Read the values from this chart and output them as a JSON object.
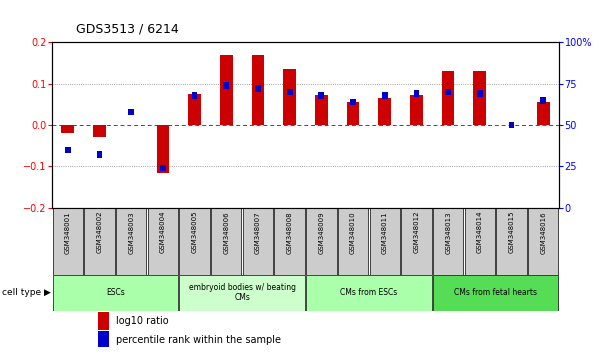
{
  "title": "GDS3513 / 6214",
  "samples": [
    "GSM348001",
    "GSM348002",
    "GSM348003",
    "GSM348004",
    "GSM348005",
    "GSM348006",
    "GSM348007",
    "GSM348008",
    "GSM348009",
    "GSM348010",
    "GSM348011",
    "GSM348012",
    "GSM348013",
    "GSM348014",
    "GSM348015",
    "GSM348016"
  ],
  "log10_ratio": [
    -0.02,
    -0.03,
    0.0,
    -0.115,
    0.075,
    0.17,
    0.17,
    0.135,
    0.072,
    0.055,
    0.065,
    0.072,
    0.13,
    0.13,
    0.0,
    0.055
  ],
  "percentile_rank": [
    35,
    32,
    58,
    24,
    68,
    74,
    72,
    70,
    68,
    64,
    68,
    69,
    70,
    69,
    50,
    65
  ],
  "cell_type_groups": [
    {
      "label": "ESCs",
      "start": 0,
      "end": 3,
      "color": "#aaffaa"
    },
    {
      "label": "embryoid bodies w/ beating\nCMs",
      "start": 4,
      "end": 7,
      "color": "#ccffcc"
    },
    {
      "label": "CMs from ESCs",
      "start": 8,
      "end": 11,
      "color": "#aaffaa"
    },
    {
      "label": "CMs from fetal hearts",
      "start": 12,
      "end": 15,
      "color": "#55dd55"
    }
  ],
  "bar_color_red": "#cc0000",
  "bar_color_blue": "#0000cc",
  "ylim": [
    -0.2,
    0.2
  ],
  "y2lim": [
    0,
    100
  ],
  "yticks": [
    -0.2,
    -0.1,
    0.0,
    0.1,
    0.2
  ],
  "y2ticks": [
    0,
    25,
    50,
    75,
    100
  ],
  "y2ticklabels": [
    "0",
    "25",
    "50",
    "75",
    "100%"
  ],
  "dotted_hlines": [
    -0.1,
    0.1
  ],
  "bar_width": 0.4,
  "blue_bar_width": 0.18,
  "blue_bar_height": 0.016,
  "legend_red": "log10 ratio",
  "legend_blue": "percentile rank within the sample",
  "cell_type_label": "cell type"
}
